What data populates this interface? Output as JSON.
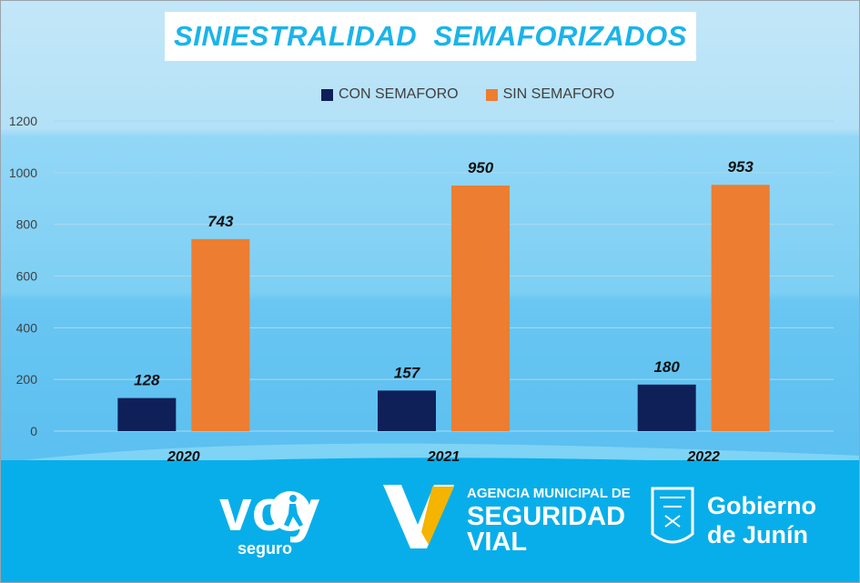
{
  "title": "SINIESTRALIDAD  SEMAFORIZADOS",
  "colors": {
    "con": "#0f2059",
    "sin": "#ed7d31",
    "band": "#08aeea",
    "title": "#1ab4ea"
  },
  "chart_data": {
    "type": "bar",
    "categories": [
      "2020",
      "2021",
      "2022"
    ],
    "series": [
      {
        "name": "CON SEMAFORO",
        "values": [
          128,
          157,
          180
        ]
      },
      {
        "name": "SIN SEMAFORO",
        "values": [
          743,
          950,
          953
        ]
      }
    ],
    "ylim": [
      0,
      1200
    ],
    "yticks": [
      0,
      200,
      400,
      600,
      800,
      1000,
      1200
    ],
    "grid": true,
    "legend_position": "top-center"
  },
  "logos": {
    "voy": {
      "word": "voy",
      "sub": "seguro"
    },
    "agencia": {
      "line1": "AGENCIA MUNICIPAL DE",
      "line2": "SEGURIDAD",
      "line3": "VIAL"
    },
    "gobierno": {
      "line1": "Gobierno",
      "line2": "de Junín"
    }
  }
}
